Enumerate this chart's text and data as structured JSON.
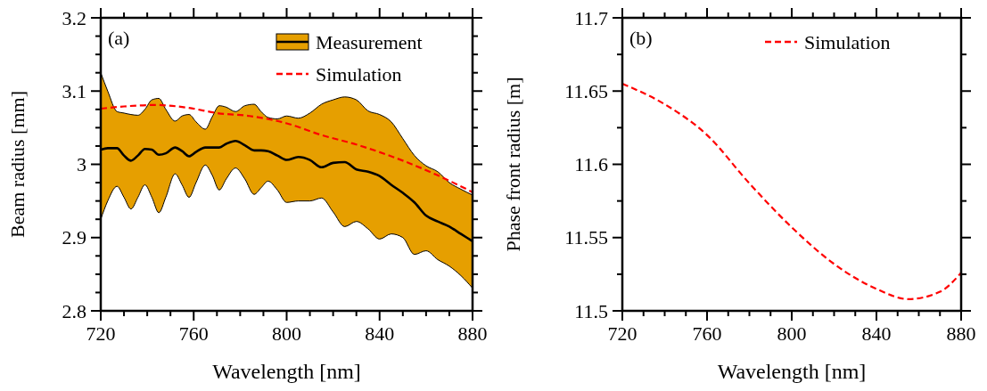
{
  "chart_data": [
    {
      "type": "line",
      "xlabel": "Wavelength [nm]",
      "ylabel": "Beam radius [mm]",
      "annotations": [
        "(a)"
      ],
      "legend": "top right",
      "grid": false,
      "xlim": [
        720,
        880
      ],
      "ylim": [
        2.8,
        3.2
      ],
      "xticks": [
        720,
        {
          "value": 730,
          "label": null
        },
        {
          "value": 740,
          "label": null
        },
        {
          "value": 750,
          "label": null
        },
        760,
        {
          "value": 770,
          "label": null
        },
        {
          "value": 780,
          "label": null
        },
        {
          "value": 790,
          "label": null
        },
        800,
        {
          "value": 810,
          "label": null
        },
        {
          "value": 820,
          "label": null
        },
        {
          "value": 830,
          "label": null
        },
        840,
        {
          "value": 850,
          "label": null
        },
        {
          "value": 860,
          "label": null
        },
        {
          "value": 870,
          "label": null
        },
        880
      ],
      "yticks": [
        2.8,
        {
          "value": 2.825,
          "label": null
        },
        {
          "value": 2.85,
          "label": null
        },
        {
          "value": 2.875,
          "label": null
        },
        2.9,
        {
          "value": 2.925,
          "label": null
        },
        {
          "value": 2.95,
          "label": null
        },
        {
          "value": 2.975,
          "label": null
        },
        3,
        {
          "value": 3.025,
          "label": null
        },
        {
          "value": 3.05,
          "label": null
        },
        {
          "value": 3.075,
          "label": null
        },
        3.1,
        {
          "value": 3.125,
          "label": null
        },
        {
          "value": 3.15,
          "label": null
        },
        {
          "value": 3.175,
          "label": null
        },
        3.2
      ],
      "series": [
        {
          "name": "Measurement",
          "color": "#000000",
          "x": [
            720,
            723,
            727,
            730,
            733,
            736,
            739,
            742,
            745,
            748,
            752,
            755,
            758,
            761,
            765,
            768,
            771,
            774,
            778,
            782,
            786,
            789,
            792,
            796,
            800,
            805,
            810,
            815,
            820,
            825,
            830,
            835,
            840,
            845,
            850,
            855,
            860,
            865,
            870,
            875,
            880
          ],
          "values": [
            3.02,
            3.022,
            3.022,
            3.012,
            3.005,
            3.012,
            3.021,
            3.02,
            3.013,
            3.015,
            3.023,
            3.018,
            3.011,
            3.017,
            3.023,
            3.023,
            3.023,
            3.028,
            3.032,
            3.026,
            3.019,
            3.019,
            3.018,
            3.012,
            3.006,
            3.01,
            3.006,
            2.996,
            3.002,
            3.003,
            2.993,
            2.99,
            2.984,
            2.972,
            2.961,
            2.948,
            2.93,
            2.922,
            2.915,
            2.905,
            2.895
          ],
          "lower": [
            2.925,
            2.95,
            2.97,
            2.955,
            2.939,
            2.955,
            2.972,
            2.955,
            2.934,
            2.955,
            2.987,
            2.972,
            2.955,
            2.975,
            2.999,
            2.985,
            2.965,
            2.98,
            2.995,
            2.98,
            2.959,
            2.968,
            2.977,
            2.965,
            2.948,
            2.95,
            2.95,
            2.954,
            2.935,
            2.915,
            2.922,
            2.912,
            2.898,
            2.905,
            2.9,
            2.877,
            2.882,
            2.87,
            2.861,
            2.848,
            2.831
          ],
          "upper": [
            3.125,
            3.1,
            3.072,
            3.07,
            3.068,
            3.067,
            3.075,
            3.088,
            3.09,
            3.075,
            3.059,
            3.066,
            3.068,
            3.058,
            3.048,
            3.065,
            3.08,
            3.078,
            3.072,
            3.08,
            3.082,
            3.072,
            3.064,
            3.062,
            3.066,
            3.063,
            3.07,
            3.082,
            3.088,
            3.092,
            3.088,
            3.073,
            3.068,
            3.058,
            3.035,
            3.012,
            2.998,
            2.99,
            2.975,
            2.966,
            2.958
          ]
        },
        {
          "name": "Simulation",
          "color": "#ff0000",
          "line_style": "dashed",
          "x": [
            720,
            730,
            743,
            758,
            770,
            784,
            800,
            815,
            830,
            850,
            865,
            880
          ],
          "values": [
            3.076,
            3.079,
            3.081,
            3.077,
            3.07,
            3.066,
            3.056,
            3.04,
            3.027,
            3.005,
            2.985,
            2.962
          ]
        }
      ]
    },
    {
      "type": "line",
      "xlabel": "Wavelength [nm]",
      "ylabel": "Phase front radius [m]",
      "annotations": [
        "(b)"
      ],
      "legend": "top right",
      "grid": false,
      "xlim": [
        720,
        880
      ],
      "ylim": [
        11.5,
        11.7
      ],
      "xticks": [
        720,
        {
          "value": 730,
          "label": null
        },
        {
          "value": 740,
          "label": null
        },
        {
          "value": 750,
          "label": null
        },
        760,
        {
          "value": 770,
          "label": null
        },
        {
          "value": 780,
          "label": null
        },
        {
          "value": 790,
          "label": null
        },
        800,
        {
          "value": 810,
          "label": null
        },
        {
          "value": 820,
          "label": null
        },
        {
          "value": 830,
          "label": null
        },
        840,
        {
          "value": 850,
          "label": null
        },
        {
          "value": 860,
          "label": null
        },
        {
          "value": 870,
          "label": null
        },
        880
      ],
      "yticks": [
        11.5,
        {
          "value": 11.525,
          "label": null
        },
        11.55,
        {
          "value": 11.575,
          "label": null
        },
        11.6,
        {
          "value": 11.625,
          "label": null
        },
        11.65,
        {
          "value": 11.675,
          "label": null
        },
        11.7
      ],
      "series": [
        {
          "name": "Simulation",
          "color": "#ff0000",
          "line_style": "dashed",
          "x": [
            720,
            740,
            760,
            780,
            800,
            820,
            840,
            855,
            870,
            880
          ],
          "values": [
            11.655,
            11.641,
            11.62,
            11.587,
            11.557,
            11.532,
            11.515,
            11.508,
            11.513,
            11.526
          ]
        }
      ]
    }
  ]
}
